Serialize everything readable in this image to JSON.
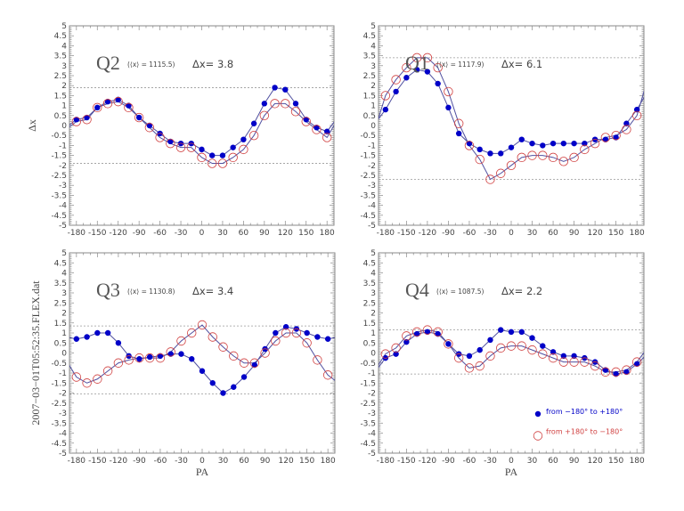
{
  "chart_data": [
    {
      "type": "line",
      "panel": "Q2",
      "title": "Q2",
      "mean_label": "(⟨x⟩ = 1115.5)",
      "range_label": "Δx=  3.8",
      "xlabel": "",
      "ylabel": "Δx",
      "xlim": [
        -190,
        190
      ],
      "ylim": [
        -5,
        5
      ],
      "x": [
        -180,
        -165,
        -150,
        -135,
        -120,
        -105,
        -90,
        -75,
        -60,
        -45,
        -30,
        -15,
        0,
        15,
        30,
        45,
        60,
        75,
        90,
        105,
        120,
        135,
        150,
        165,
        180
      ],
      "series": [
        {
          "name": "from −180° to +180°",
          "marker": "filled",
          "color": "#0000c8",
          "values": [
            0.3,
            0.4,
            0.9,
            1.2,
            1.3,
            1.0,
            0.4,
            0.0,
            -0.4,
            -0.8,
            -0.9,
            -0.9,
            -1.2,
            -1.5,
            -1.5,
            -1.1,
            -0.7,
            0.1,
            1.1,
            1.9,
            1.8,
            1.1,
            0.3,
            -0.1,
            -0.3
          ]
        },
        {
          "name": "from +180° to −180°",
          "marker": "open",
          "color": "#d04040",
          "values": [
            0.2,
            0.3,
            0.9,
            1.1,
            1.2,
            0.9,
            0.4,
            -0.1,
            -0.6,
            -0.9,
            -1.1,
            -1.1,
            -1.6,
            -1.9,
            -1.9,
            -1.6,
            -1.2,
            -0.5,
            0.5,
            1.1,
            1.1,
            0.7,
            0.2,
            -0.2,
            -0.6
          ]
        }
      ],
      "reference_lines": [
        1.9,
        -1.9
      ]
    },
    {
      "type": "line",
      "panel": "Q1",
      "title": "Q1",
      "mean_label": "(⟨x⟩ = 1117.9)",
      "range_label": "Δx=  6.1",
      "xlabel": "",
      "ylabel": "",
      "xlim": [
        -190,
        190
      ],
      "ylim": [
        -5,
        5
      ],
      "x": [
        -180,
        -165,
        -150,
        -135,
        -120,
        -105,
        -90,
        -75,
        -60,
        -45,
        -30,
        -15,
        0,
        15,
        30,
        45,
        60,
        75,
        90,
        105,
        120,
        135,
        150,
        165,
        180
      ],
      "series": [
        {
          "name": "from −180° to +180°",
          "marker": "filled",
          "color": "#0000c8",
          "values": [
            0.8,
            1.7,
            2.4,
            2.8,
            2.7,
            2.1,
            0.9,
            -0.4,
            -0.9,
            -1.2,
            -1.4,
            -1.4,
            -1.1,
            -0.7,
            -0.9,
            -1.0,
            -0.9,
            -0.9,
            -0.9,
            -0.9,
            -0.7,
            -0.7,
            -0.6,
            0.1,
            0.8
          ]
        },
        {
          "name": "from +180° to −180°",
          "marker": "open",
          "color": "#d04040",
          "values": [
            1.5,
            2.3,
            2.9,
            3.4,
            3.4,
            2.9,
            1.7,
            0.1,
            -1.0,
            -1.7,
            -2.7,
            -2.4,
            -2.0,
            -1.6,
            -1.5,
            -1.5,
            -1.6,
            -1.8,
            -1.6,
            -1.2,
            -0.9,
            -0.6,
            -0.5,
            -0.2,
            0.5
          ]
        }
      ],
      "reference_lines": [
        3.4,
        -2.7
      ]
    },
    {
      "type": "line",
      "panel": "Q3",
      "title": "Q3",
      "mean_label": "(⟨x⟩ = 1130.8)",
      "range_label": "Δx=  3.4",
      "xlabel": "PA",
      "ylabel": "2007−03−01T05:52:35.FLEX.dat",
      "xlim": [
        -190,
        190
      ],
      "ylim": [
        -5,
        5
      ],
      "x": [
        -180,
        -165,
        -150,
        -135,
        -120,
        -105,
        -90,
        -75,
        -60,
        -45,
        -30,
        -15,
        0,
        15,
        30,
        45,
        60,
        75,
        90,
        105,
        120,
        135,
        150,
        165,
        180
      ],
      "series": [
        {
          "name": "from −180° to +180°",
          "marker": "filled",
          "color": "#0000c8",
          "values": [
            0.7,
            0.8,
            1.0,
            1.0,
            0.5,
            -0.15,
            -0.3,
            -0.2,
            -0.15,
            -0.05,
            -0.05,
            -0.3,
            -0.9,
            -1.5,
            -2.0,
            -1.7,
            -1.2,
            -0.6,
            0.2,
            1.0,
            1.3,
            1.2,
            1.0,
            0.8,
            0.7
          ]
        },
        {
          "name": "from +180° to −180°",
          "marker": "open",
          "color": "#d04040",
          "values": [
            -1.2,
            -1.5,
            -1.3,
            -0.9,
            -0.5,
            -0.35,
            -0.25,
            -0.25,
            -0.25,
            0.05,
            0.6,
            1.0,
            1.4,
            0.8,
            0.3,
            -0.15,
            -0.5,
            -0.5,
            0.0,
            0.6,
            1.0,
            1.0,
            0.5,
            -0.35,
            -1.1
          ]
        }
      ],
      "reference_lines": [
        1.35,
        -2.05
      ]
    },
    {
      "type": "line",
      "panel": "Q4",
      "title": "Q4",
      "mean_label": "(⟨x⟩ = 1087.5)",
      "range_label": "Δx=  2.2",
      "xlabel": "PA",
      "ylabel": "",
      "xlim": [
        -190,
        190
      ],
      "ylim": [
        -5,
        5
      ],
      "x": [
        -180,
        -165,
        -150,
        -135,
        -120,
        -105,
        -90,
        -75,
        -60,
        -45,
        -30,
        -15,
        0,
        15,
        30,
        45,
        60,
        75,
        90,
        105,
        120,
        135,
        150,
        165,
        180
      ],
      "series": [
        {
          "name": "from −180° to +180°",
          "marker": "filled",
          "color": "#0000c8",
          "values": [
            -0.25,
            -0.05,
            0.55,
            0.95,
            1.05,
            0.95,
            0.45,
            -0.05,
            -0.15,
            0.15,
            0.65,
            1.15,
            1.05,
            1.05,
            0.75,
            0.35,
            0.05,
            -0.15,
            -0.15,
            -0.25,
            -0.45,
            -0.85,
            -1.05,
            -0.95,
            -0.55
          ]
        },
        {
          "name": "from +180° to −180°",
          "marker": "open",
          "color": "#d04040",
          "values": [
            -0.05,
            0.25,
            0.85,
            1.05,
            1.15,
            1.05,
            0.45,
            -0.25,
            -0.75,
            -0.65,
            -0.15,
            0.25,
            0.35,
            0.35,
            0.15,
            -0.05,
            -0.25,
            -0.45,
            -0.45,
            -0.45,
            -0.65,
            -0.95,
            -0.95,
            -0.85,
            -0.45
          ]
        }
      ],
      "reference_lines": [
        1.15,
        -1.05
      ],
      "legend": {
        "placement": "bottom-right",
        "entries": [
          "from −180° to +180°",
          "from +180° to −180°"
        ]
      }
    }
  ],
  "axes": {
    "y_ticks": [
      "5",
      "4.5",
      "4",
      "3.5",
      "3",
      "2.5",
      "2",
      "1.5",
      "1",
      "0.5",
      "0",
      "-0.5",
      "-1",
      "-1.5",
      "-2",
      "-2.5",
      "-3",
      "-3.5",
      "-4",
      "-4.5",
      "-5"
    ],
    "x_ticks": [
      "-180",
      "-150",
      "-120",
      "-90",
      "-60",
      "-30",
      "0",
      "30",
      "60",
      "90",
      "120",
      "150",
      "180"
    ]
  },
  "colors": {
    "filled": "#0000c8",
    "open": "#d04040",
    "line": "#5050a0",
    "frame": "#888888",
    "refline": "#999999"
  }
}
